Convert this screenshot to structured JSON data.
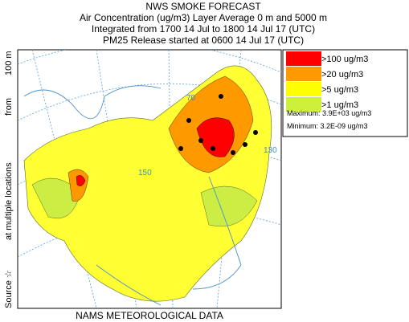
{
  "header": {
    "title": "NWS SMOKE FORECAST",
    "lines": [
      "Air Concentration (ug/m3) Layer Average    0 m and  5000 m",
      "Integrated from 1700 14 Jul to 1800 14 Jul 17 (UTC)",
      "PM25 Release started at 0600 14 Jul 17 (UTC)"
    ]
  },
  "legend": {
    "items": [
      {
        "label": ">100 ug/m3",
        "color": "#ff0000"
      },
      {
        "label": ">20 ug/m3",
        "color": "#ff9900"
      },
      {
        "label": ">5 ug/m3",
        "color": "#ffff00"
      },
      {
        "label": ">1 ug/m3",
        "color": "#ccf03c"
      }
    ],
    "maximum": "Maximum: 3.9E+03 ug/m3",
    "minimum": "Minimum: 3.2E-09 ug/m3"
  },
  "side_label": {
    "source": "Source ☆",
    "locations": "at multiple locations",
    "from": "from",
    "height": "100 m"
  },
  "map": {
    "grid_labels": [
      "70",
      "150",
      "130"
    ]
  },
  "footer": "NAMS METEOROLOGICAL DATA"
}
